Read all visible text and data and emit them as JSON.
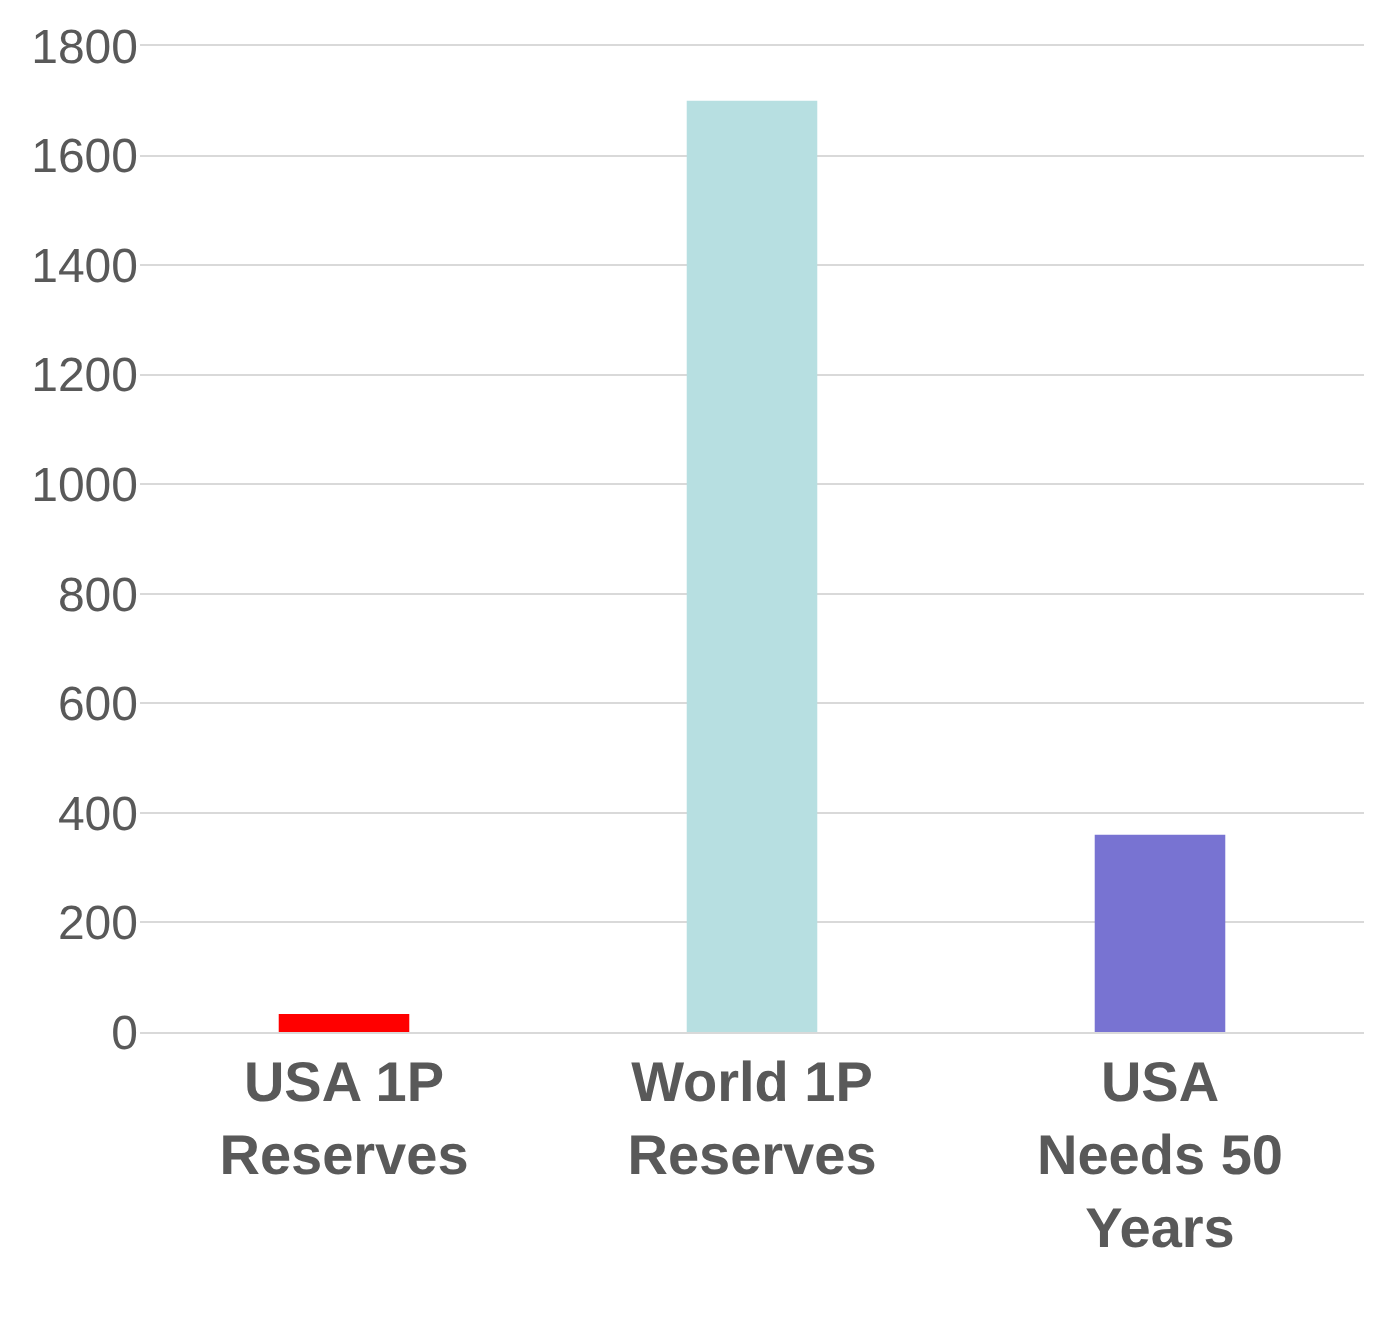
{
  "chart_data": {
    "type": "bar",
    "categories": [
      "USA 1P\nReserves",
      "World 1P\nReserves",
      "USA\nNeeds 50\nYears"
    ],
    "values": [
      33,
      1700,
      360
    ],
    "colors": [
      "#ff0000",
      "#b7dfe1",
      "#7873d2"
    ],
    "ylim": [
      0,
      1800
    ],
    "yticks": [
      0,
      200,
      400,
      600,
      800,
      1000,
      1200,
      1400,
      1600,
      1800
    ],
    "grid": "y"
  }
}
